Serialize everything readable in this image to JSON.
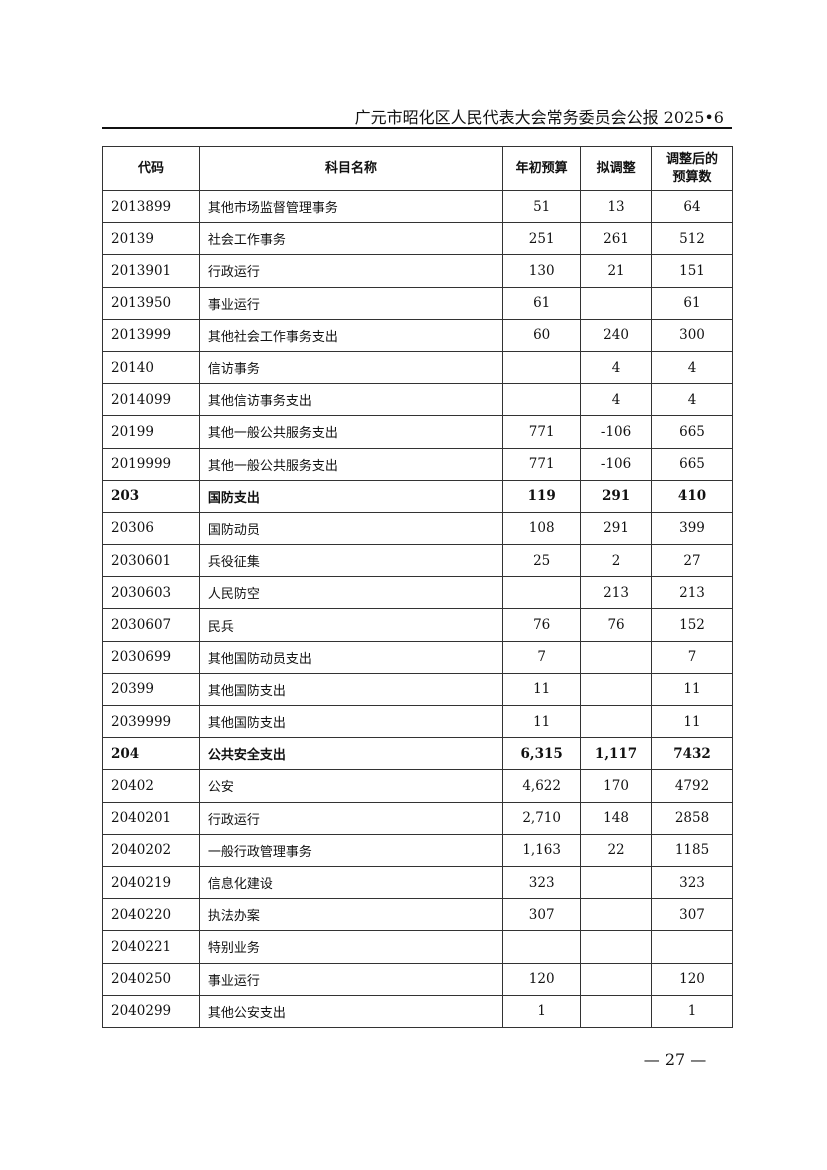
{
  "header": {
    "title": "广元市昭化区人民代表大会常务委员会公报 2025•6"
  },
  "table": {
    "columns": [
      "代码",
      "科目名称",
      "年初预算",
      "拟调整",
      "调整后的预算数"
    ],
    "rows": [
      {
        "code": "2013899",
        "name": "其他市场监督管理事务",
        "initial": "51",
        "adjust": "13",
        "adjusted": "64",
        "bold": false
      },
      {
        "code": "20139",
        "name": "社会工作事务",
        "initial": "251",
        "adjust": "261",
        "adjusted": "512",
        "bold": false
      },
      {
        "code": "2013901",
        "name": "行政运行",
        "initial": "130",
        "adjust": "21",
        "adjusted": "151",
        "bold": false
      },
      {
        "code": "2013950",
        "name": "事业运行",
        "initial": "61",
        "adjust": "",
        "adjusted": "61",
        "bold": false
      },
      {
        "code": "2013999",
        "name": "其他社会工作事务支出",
        "initial": "60",
        "adjust": "240",
        "adjusted": "300",
        "bold": false
      },
      {
        "code": "20140",
        "name": "信访事务",
        "initial": "",
        "adjust": "4",
        "adjusted": "4",
        "bold": false
      },
      {
        "code": "2014099",
        "name": "其他信访事务支出",
        "initial": "",
        "adjust": "4",
        "adjusted": "4",
        "bold": false
      },
      {
        "code": "20199",
        "name": "其他一般公共服务支出",
        "initial": "771",
        "adjust": "-106",
        "adjusted": "665",
        "bold": false
      },
      {
        "code": "2019999",
        "name": "其他一般公共服务支出",
        "initial": "771",
        "adjust": "-106",
        "adjusted": "665",
        "bold": false
      },
      {
        "code": "203",
        "name": "国防支出",
        "initial": "119",
        "adjust": "291",
        "adjusted": "410",
        "bold": true
      },
      {
        "code": "20306",
        "name": "国防动员",
        "initial": "108",
        "adjust": "291",
        "adjusted": "399",
        "bold": false
      },
      {
        "code": "2030601",
        "name": "兵役征集",
        "initial": "25",
        "adjust": "2",
        "adjusted": "27",
        "bold": false
      },
      {
        "code": "2030603",
        "name": "人民防空",
        "initial": "",
        "adjust": "213",
        "adjusted": "213",
        "bold": false
      },
      {
        "code": "2030607",
        "name": "民兵",
        "initial": "76",
        "adjust": "76",
        "adjusted": "152",
        "bold": false
      },
      {
        "code": "2030699",
        "name": "其他国防动员支出",
        "initial": "7",
        "adjust": "",
        "adjusted": "7",
        "bold": false
      },
      {
        "code": "20399",
        "name": "其他国防支出",
        "initial": "11",
        "adjust": "",
        "adjusted": "11",
        "bold": false
      },
      {
        "code": "2039999",
        "name": "其他国防支出",
        "initial": "11",
        "adjust": "",
        "adjusted": "11",
        "bold": false
      },
      {
        "code": "204",
        "name": "公共安全支出",
        "initial": "6,315",
        "adjust": "1,117",
        "adjusted": "7432",
        "bold": true
      },
      {
        "code": "20402",
        "name": "公安",
        "initial": "4,622",
        "adjust": "170",
        "adjusted": "4792",
        "bold": false
      },
      {
        "code": "2040201",
        "name": "行政运行",
        "initial": "2,710",
        "adjust": "148",
        "adjusted": "2858",
        "bold": false
      },
      {
        "code": "2040202",
        "name": "一般行政管理事务",
        "initial": "1,163",
        "adjust": "22",
        "adjusted": "1185",
        "bold": false
      },
      {
        "code": "2040219",
        "name": "信息化建设",
        "initial": "323",
        "adjust": "",
        "adjusted": "323",
        "bold": false
      },
      {
        "code": "2040220",
        "name": "执法办案",
        "initial": "307",
        "adjust": "",
        "adjusted": "307",
        "bold": false
      },
      {
        "code": "2040221",
        "name": "特别业务",
        "initial": "",
        "adjust": "",
        "adjusted": "",
        "bold": false
      },
      {
        "code": "2040250",
        "name": "事业运行",
        "initial": "120",
        "adjust": "",
        "adjusted": "120",
        "bold": false
      },
      {
        "code": "2040299",
        "name": "其他公安支出",
        "initial": "1",
        "adjust": "",
        "adjusted": "1",
        "bold": false
      }
    ]
  },
  "footer": {
    "page_number": "— 27 —"
  }
}
